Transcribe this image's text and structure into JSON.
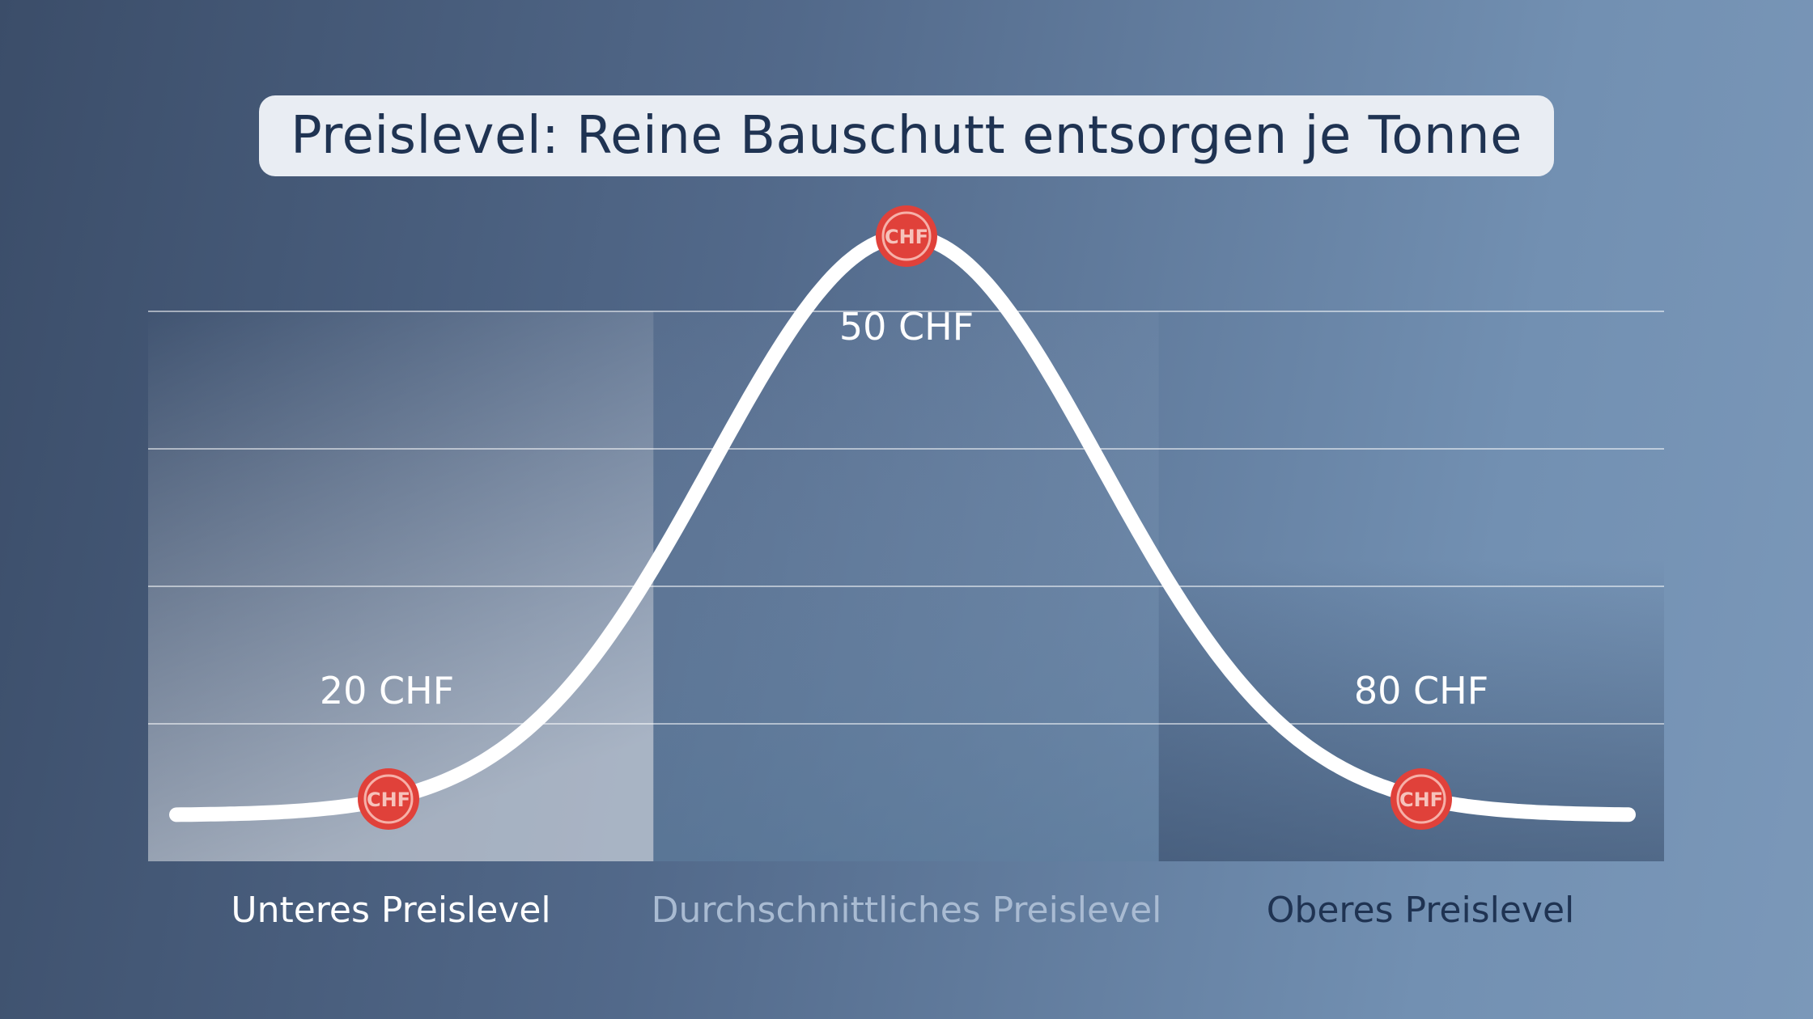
{
  "title": "Preislevel: Reine Bauschutt entsorgen je Tonne",
  "chart_data": {
    "type": "line",
    "title": "Preislevel: Reine Bauschutt entsorgen je Tonne",
    "categories": [
      "Unteres Preislevel",
      "Durchschnittliches Preislevel",
      "Oberes Preislevel"
    ],
    "points": [
      {
        "category": "Unteres Preislevel",
        "label": "20 CHF",
        "value": 20
      },
      {
        "category": "Durchschnittliches Preislevel",
        "label": "50 CHF",
        "value": 50
      },
      {
        "category": "Oberes Preislevel",
        "label": "80 CHF",
        "value": 80
      }
    ],
    "marker_text": "CHF",
    "grid": true,
    "colors": {
      "curve": "#ffffff",
      "marker": "#e0413a",
      "title_box": "#e9edf3",
      "title_text": "#1f3352"
    }
  }
}
